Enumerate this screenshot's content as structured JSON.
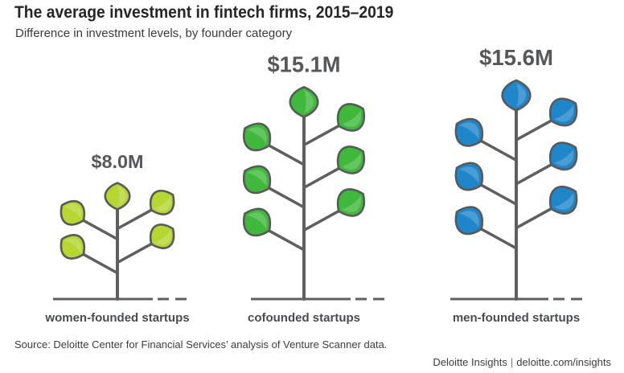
{
  "title": "The average investment in fintech firms, 2015–2019",
  "subtitle": "Difference in investment levels, by founder category",
  "source": "Source: Deloitte Center for Financial Services’ analysis of Venture Scanner data.",
  "footer": {
    "brand": "Deloitte Insights",
    "separator": "|",
    "url": "deloitte.com/insights"
  },
  "chart_data": {
    "type": "bar",
    "title": "The average investment in fintech firms, 2015–2019",
    "subtitle": "Difference in investment levels, by founder category",
    "categories": [
      "women-founded startups",
      "cofounded startups",
      "men-founded startups"
    ],
    "values": [
      8.0,
      15.1,
      15.6
    ],
    "data_labels": [
      "$8.0M",
      "$15.1M",
      "$15.6M"
    ],
    "unit": "$M",
    "colors": {
      "women": "#b6d631",
      "cofounded": "#3fb83c",
      "men": "#1f86c9",
      "stem": "#5d5f60",
      "outline": "#58595b"
    },
    "icons": [
      "plant-icon-small",
      "plant-icon-medium",
      "plant-icon-large"
    ],
    "grid": false,
    "legend": "none"
  }
}
